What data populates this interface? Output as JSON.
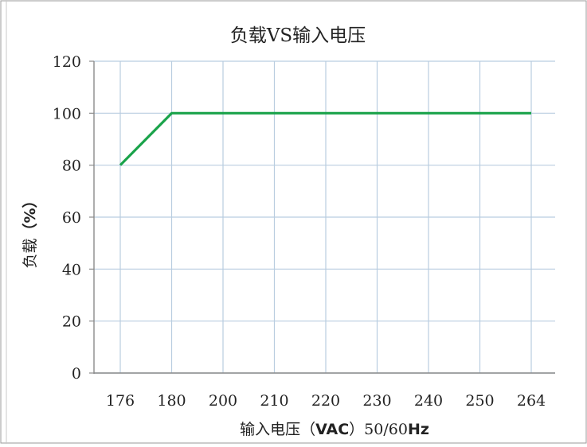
{
  "chart_data": {
    "type": "line",
    "title": "负载VS输入电压",
    "xlabel_prefix": "输入电压（",
    "xlabel_bold": "VAC",
    "xlabel_middle": "）50/60",
    "xlabel_unit": "Hz",
    "ylabel_text": "负载",
    "ylabel_unit": "（%）",
    "categories": [
      "176",
      "180",
      "200",
      "210",
      "220",
      "230",
      "240",
      "250",
      "264"
    ],
    "yticks": [
      "0",
      "20",
      "40",
      "60",
      "80",
      "100",
      "120"
    ],
    "ylim": [
      0,
      120
    ],
    "series": [
      {
        "values": [
          80,
          100,
          100,
          100,
          100,
          100,
          100,
          100,
          100
        ],
        "color": "#1aa34a"
      }
    ],
    "grid": true,
    "grid_color": "#b9cde0",
    "axis_color": "#8a8a8a"
  }
}
